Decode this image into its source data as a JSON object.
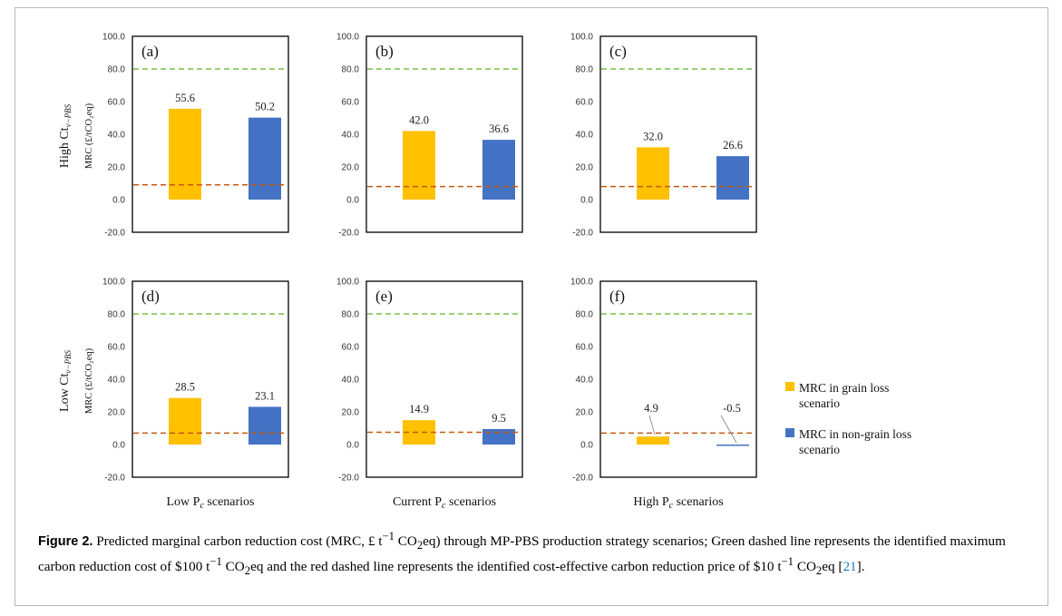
{
  "chart_data": {
    "type": "bar",
    "ylim": [
      -20,
      100
    ],
    "yticks": [
      "100.0",
      "80.0",
      "60.0",
      "40.0",
      "20.0",
      "0.0",
      "-20.0"
    ],
    "ylabel": "MRC (£/tCO₂eq)",
    "row_labels": [
      "High Ct",
      "Low Ct"
    ],
    "row_label_sub": "v−PBS",
    "x_labels": [
      "Low P",
      "Current P",
      "High P"
    ],
    "x_label_sub": "c",
    "x_label_suffix": " scenarios",
    "legend": [
      {
        "label_lines": [
          "MRC in grain loss",
          "scenario"
        ],
        "color": "#FFC000"
      },
      {
        "label_lines": [
          "MRC in non-grain loss",
          "scenario"
        ],
        "color": "#4472C4"
      }
    ],
    "colors": {
      "grain": "#FFC000",
      "nongrain": "#4472C4",
      "green_line": "#7AC143",
      "red_line": "#C55A11"
    },
    "panels": [
      {
        "label": "(a)",
        "series": [
          {
            "name": "MRC in grain loss scenario",
            "value": 55.6,
            "label": "55.6"
          },
          {
            "name": "MRC in non-grain loss scenario",
            "value": 50.2,
            "label": "50.2"
          }
        ],
        "green_ref": 80,
        "red_ref": 9
      },
      {
        "label": "(b)",
        "series": [
          {
            "name": "MRC in grain loss scenario",
            "value": 42.0,
            "label": "42.0"
          },
          {
            "name": "MRC in non-grain loss scenario",
            "value": 36.6,
            "label": "36.6"
          }
        ],
        "green_ref": 80,
        "red_ref": 8
      },
      {
        "label": "(c)",
        "series": [
          {
            "name": "MRC in grain loss scenario",
            "value": 32.0,
            "label": "32.0"
          },
          {
            "name": "MRC in non-grain loss scenario",
            "value": 26.6,
            "label": "26.6"
          }
        ],
        "green_ref": 80,
        "red_ref": 8
      },
      {
        "label": "(d)",
        "series": [
          {
            "name": "MRC in grain loss scenario",
            "value": 28.5,
            "label": "28.5"
          },
          {
            "name": "MRC in non-grain loss scenario",
            "value": 23.1,
            "label": "23.1"
          }
        ],
        "green_ref": 80,
        "red_ref": 7
      },
      {
        "label": "(e)",
        "series": [
          {
            "name": "MRC in grain loss scenario",
            "value": 14.9,
            "label": "14.9"
          },
          {
            "name": "MRC in non-grain loss scenario",
            "value": 9.5,
            "label": "9.5"
          }
        ],
        "green_ref": 80,
        "red_ref": 7.5
      },
      {
        "label": "(f)",
        "series": [
          {
            "name": "MRC in grain loss scenario",
            "value": 4.9,
            "label": "4.9"
          },
          {
            "name": "MRC in non-grain loss scenario",
            "value": -0.5,
            "label": "-0.5"
          }
        ],
        "green_ref": 80,
        "red_ref": 7
      }
    ]
  },
  "caption": {
    "figure_label": "Figure 2.",
    "text_1": " Predicted marginal carbon reduction cost (MRC, £ t",
    "sup_1": "−1",
    "text_2": " CO",
    "sub_1": "2",
    "text_3": "eq) through MP-PBS production strategy scenarios; Green dashed line represents the identified maximum carbon reduction cost of $100 t",
    "sup_2": "−1",
    "text_4": " CO",
    "sub_2": "2",
    "text_5": "eq and the red dashed line represents the identified cost-effective carbon reduction price of $10 t",
    "sup_3": "−1",
    "text_6": " CO",
    "sub_3": "2",
    "text_7": "eq [",
    "ref": "21",
    "text_8": "]."
  }
}
